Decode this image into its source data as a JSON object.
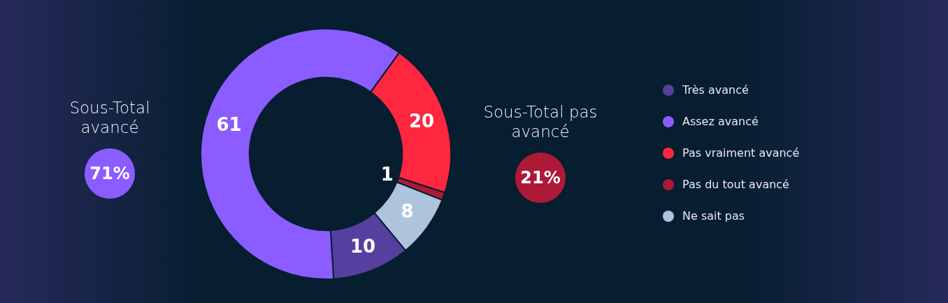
{
  "chart_data": {
    "type": "donut",
    "categories": [
      "Très avancé",
      "Assez avancé",
      "Pas vraiment avancé",
      "Pas du tout avancé",
      "Ne sait pas"
    ],
    "values": [
      10,
      61,
      20,
      1,
      8
    ],
    "colors": [
      "#56409f",
      "#8b5cff",
      "#ff263f",
      "#ad1a37",
      "#aec3dc"
    ],
    "data_labels": true,
    "legend": "right",
    "annotations": [
      "Sous-Total avancé",
      "71%",
      "Sous-Total pas avancé",
      "21%"
    ]
  }
}
